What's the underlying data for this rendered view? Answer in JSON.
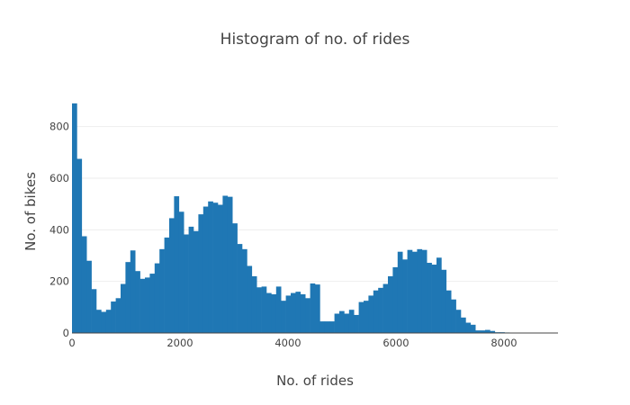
{
  "chart_data": {
    "type": "bar",
    "title": "Histogram of no. of rides",
    "xlabel": "No. of rides",
    "ylabel": "No. of bikes",
    "xlim": [
      0,
      9000
    ],
    "ylim": [
      0,
      900
    ],
    "bin_width": 90,
    "x_ticks": [
      "0",
      "2000",
      "4000",
      "6000",
      "8000"
    ],
    "x_tick_values": [
      0,
      2000,
      4000,
      6000,
      8000
    ],
    "y_ticks": [
      "0",
      "200",
      "400",
      "600",
      "800"
    ],
    "y_tick_values": [
      0,
      200,
      400,
      600,
      800
    ],
    "grid": "horizontal",
    "legend": "none",
    "bar_color": "#1f77b4",
    "values": [
      890,
      675,
      375,
      280,
      170,
      90,
      82,
      90,
      122,
      135,
      190,
      275,
      320,
      240,
      210,
      215,
      230,
      270,
      325,
      370,
      445,
      530,
      470,
      382,
      412,
      395,
      460,
      490,
      510,
      505,
      497,
      532,
      528,
      425,
      345,
      325,
      260,
      220,
      177,
      180,
      155,
      150,
      180,
      125,
      145,
      155,
      160,
      150,
      135,
      192,
      188,
      45,
      45,
      45,
      75,
      85,
      75,
      90,
      70,
      120,
      125,
      145,
      165,
      175,
      190,
      220,
      255,
      315,
      285,
      322,
      315,
      325,
      322,
      272,
      265,
      292,
      245,
      165,
      130,
      90,
      60,
      40,
      32,
      10,
      10,
      12,
      8,
      3,
      3,
      2
    ]
  }
}
